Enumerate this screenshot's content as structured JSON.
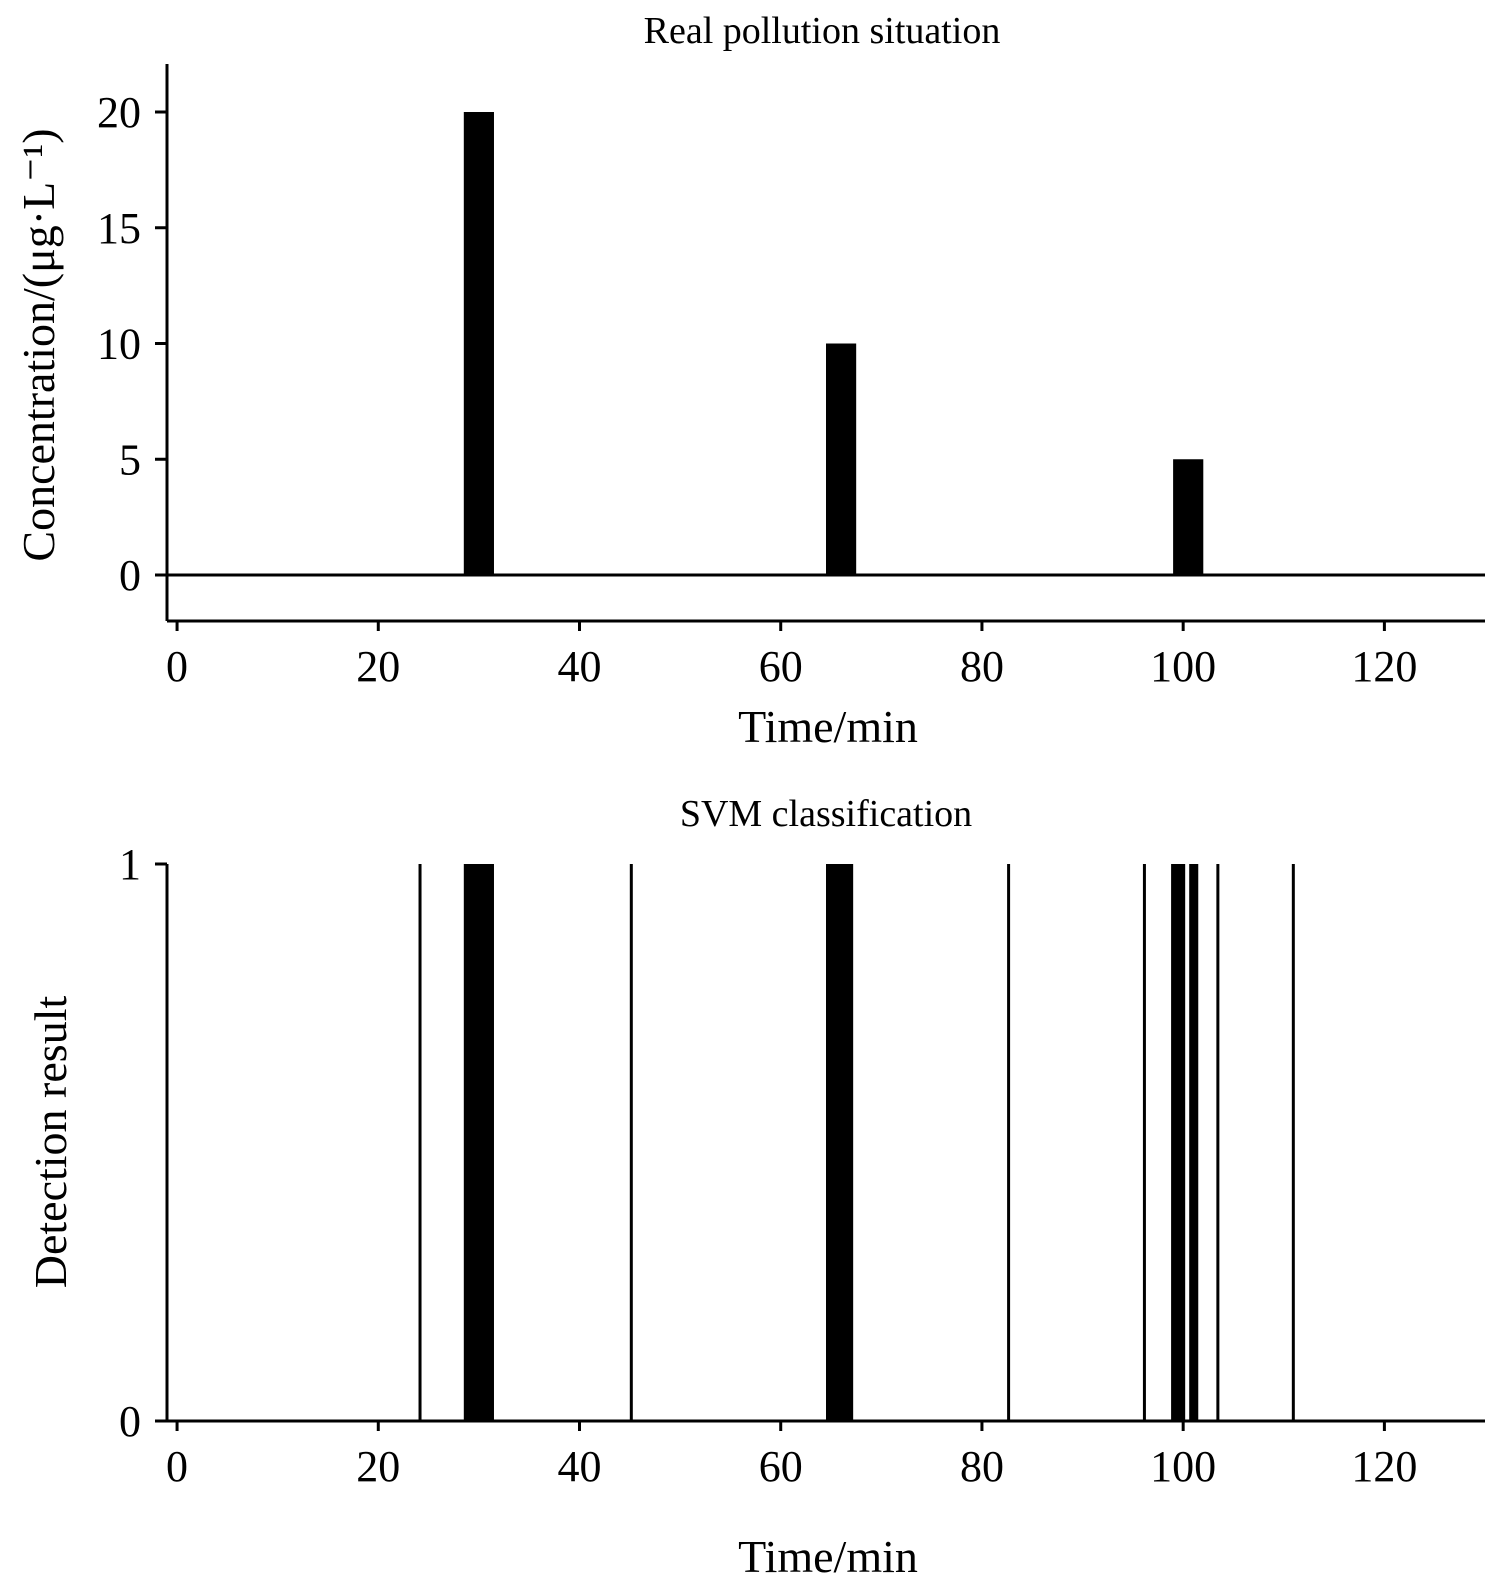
{
  "chart_data": [
    {
      "type": "bar",
      "title": "Real pollution situation",
      "xlabel": "Time/min",
      "ylabel": "Concentration/(μg·L⁻¹)",
      "xlim": [
        -1,
        130
      ],
      "ylim": [
        -2,
        22
      ],
      "xticks": [
        0,
        20,
        40,
        60,
        80,
        100,
        120
      ],
      "xtick_labels": [
        "0",
        "20",
        "40",
        "60",
        "80",
        "100",
        "120"
      ],
      "yticks": [
        0,
        5,
        10,
        15,
        20
      ],
      "ytick_labels": [
        "0",
        "5",
        "10",
        "15",
        "20"
      ],
      "grid": false,
      "baseline": 0,
      "bars": [
        {
          "x_start": 28.5,
          "x_end": 31.5,
          "value": 20
        },
        {
          "x_start": 64.5,
          "x_end": 67.5,
          "value": 10
        },
        {
          "x_start": 99,
          "x_end": 102,
          "value": 5
        }
      ]
    },
    {
      "type": "bar",
      "title": "SVM classification",
      "xlabel": "Time/min",
      "ylabel": "Detection result",
      "xlim": [
        -1,
        130
      ],
      "ylim": [
        0,
        1
      ],
      "xticks": [
        0,
        20,
        40,
        60,
        80,
        100,
        120
      ],
      "xtick_labels": [
        "0",
        "20",
        "40",
        "60",
        "80",
        "100",
        "120"
      ],
      "yticks": [
        0,
        1
      ],
      "ytick_labels": [
        "0",
        "1"
      ],
      "grid": false,
      "detections": [
        {
          "x_start": 24,
          "x_end": 24.2,
          "value": 1
        },
        {
          "x_start": 28.5,
          "x_end": 31.5,
          "value": 1
        },
        {
          "x_start": 45,
          "x_end": 45.2,
          "value": 1
        },
        {
          "x_start": 64.5,
          "x_end": 67.2,
          "value": 1
        },
        {
          "x_start": 82.5,
          "x_end": 82.7,
          "value": 1
        },
        {
          "x_start": 96,
          "x_end": 96.2,
          "value": 1
        },
        {
          "x_start": 98.8,
          "x_end": 100.2,
          "value": 1
        },
        {
          "x_start": 100.6,
          "x_end": 101.5,
          "value": 1
        },
        {
          "x_start": 103.3,
          "x_end": 103.5,
          "value": 1
        },
        {
          "x_start": 110.8,
          "x_end": 111,
          "value": 1
        }
      ]
    }
  ]
}
